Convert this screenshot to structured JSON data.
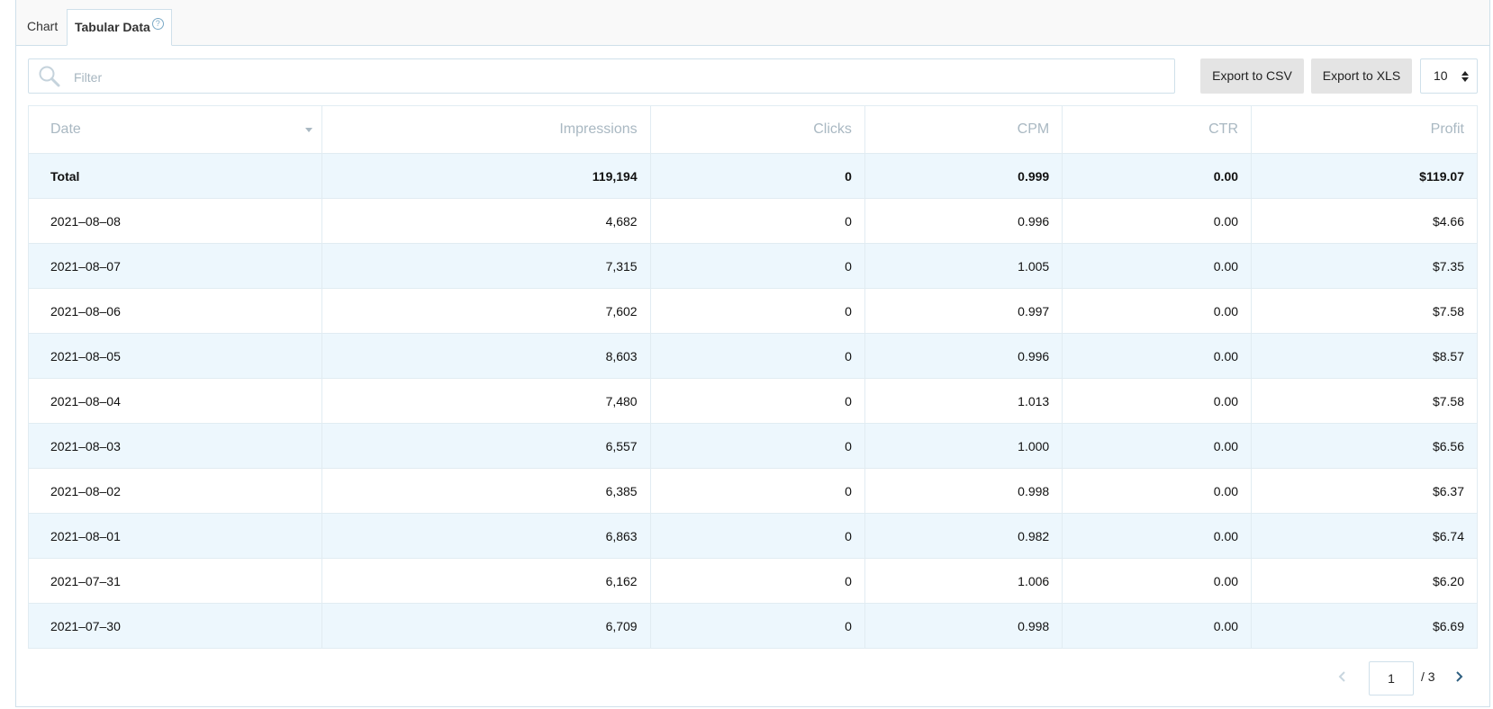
{
  "tabs": [
    {
      "label": "Chart"
    },
    {
      "label": "Tabular Data",
      "help": "?"
    }
  ],
  "toolbar": {
    "filter_placeholder": "Filter",
    "export_csv_label": "Export to CSV",
    "export_xls_label": "Export to XLS",
    "page_size": "10"
  },
  "table": {
    "columns": [
      "Date",
      "Impressions",
      "Clicks",
      "CPM",
      "CTR",
      "Profit"
    ],
    "sorted_column": "Date",
    "total": {
      "date": "Total",
      "impressions": "119,194",
      "clicks": "0",
      "cpm": "0.999",
      "ctr": "0.00",
      "profit": "$119.07"
    },
    "rows": [
      {
        "date": "2021–08–08",
        "impressions": "4,682",
        "clicks": "0",
        "cpm": "0.996",
        "ctr": "0.00",
        "profit": "$4.66"
      },
      {
        "date": "2021–08–07",
        "impressions": "7,315",
        "clicks": "0",
        "cpm": "1.005",
        "ctr": "0.00",
        "profit": "$7.35"
      },
      {
        "date": "2021–08–06",
        "impressions": "7,602",
        "clicks": "0",
        "cpm": "0.997",
        "ctr": "0.00",
        "profit": "$7.58"
      },
      {
        "date": "2021–08–05",
        "impressions": "8,603",
        "clicks": "0",
        "cpm": "0.996",
        "ctr": "0.00",
        "profit": "$8.57"
      },
      {
        "date": "2021–08–04",
        "impressions": "7,480",
        "clicks": "0",
        "cpm": "1.013",
        "ctr": "0.00",
        "profit": "$7.58"
      },
      {
        "date": "2021–08–03",
        "impressions": "6,557",
        "clicks": "0",
        "cpm": "1.000",
        "ctr": "0.00",
        "profit": "$6.56"
      },
      {
        "date": "2021–08–02",
        "impressions": "6,385",
        "clicks": "0",
        "cpm": "0.998",
        "ctr": "0.00",
        "profit": "$6.37"
      },
      {
        "date": "2021–08–01",
        "impressions": "6,863",
        "clicks": "0",
        "cpm": "0.982",
        "ctr": "0.00",
        "profit": "$6.74"
      },
      {
        "date": "2021–07–31",
        "impressions": "6,162",
        "clicks": "0",
        "cpm": "1.006",
        "ctr": "0.00",
        "profit": "$6.20"
      },
      {
        "date": "2021–07–30",
        "impressions": "6,709",
        "clicks": "0",
        "cpm": "0.998",
        "ctr": "0.00",
        "profit": "$6.69"
      }
    ]
  },
  "pagination": {
    "current_page": "1",
    "total_label": "/ 3"
  },
  "colors": {
    "accent_border": "#cfe0ea",
    "row_alt": "#edf7fd",
    "header_text": "#a9b8c2",
    "button_bg": "#e4e4e4"
  },
  "icons": {
    "filter": "search-icon",
    "prev": "chevron-left-icon",
    "next": "chevron-right-icon",
    "help": "help-circle-icon",
    "sort": "caret-down-icon"
  }
}
